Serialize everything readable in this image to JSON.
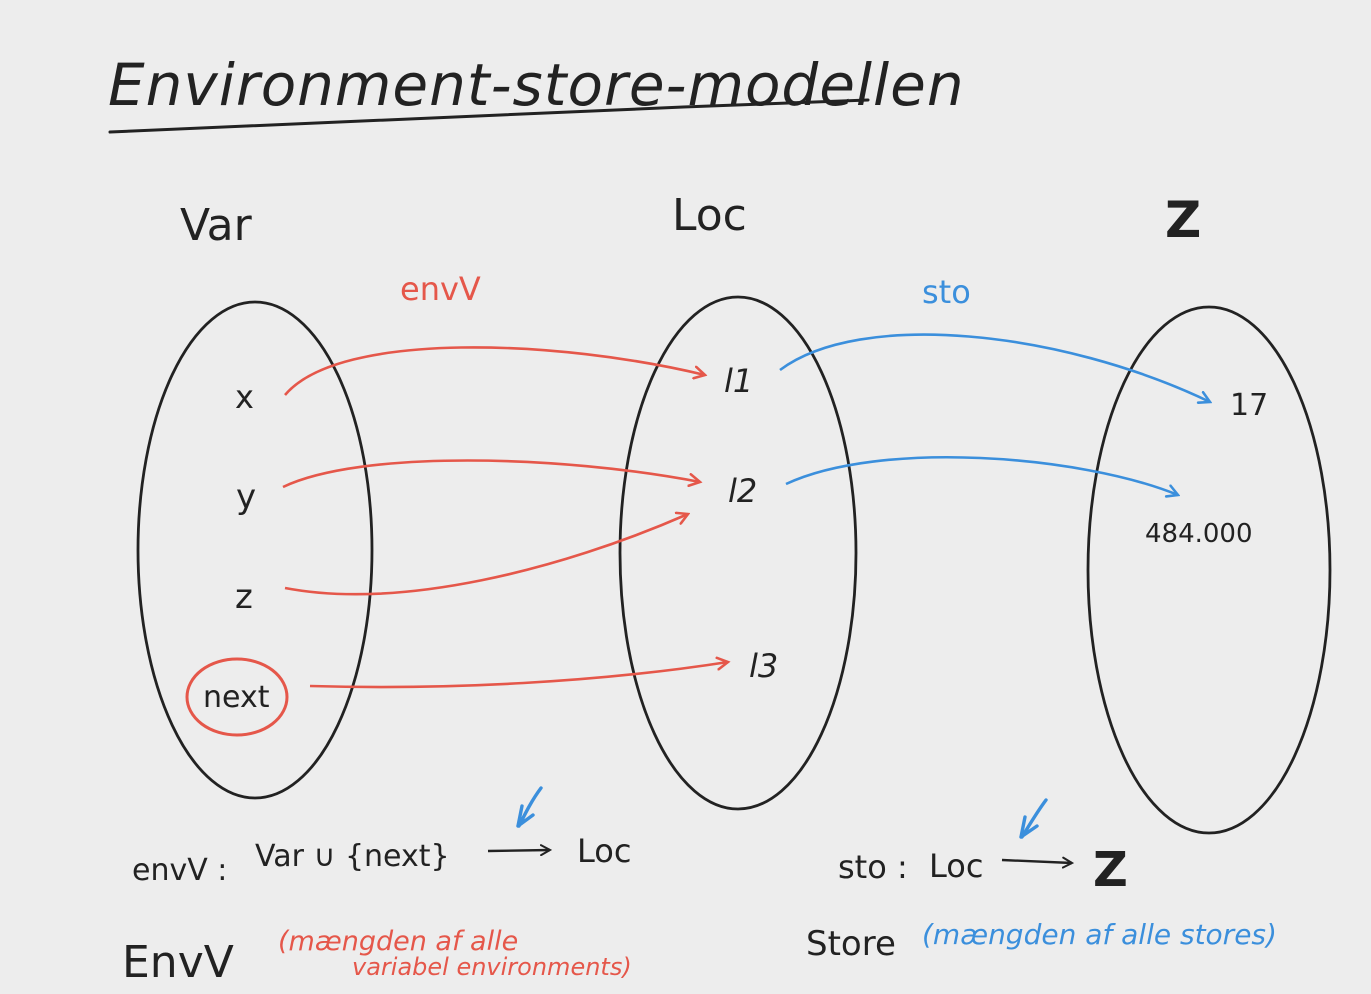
{
  "title": "Environment-store-modellen",
  "sets": {
    "var": {
      "label": "Var",
      "items": [
        "x",
        "y",
        "z",
        "next"
      ]
    },
    "loc": {
      "label": "Loc",
      "items": [
        "l1",
        "l2",
        "l3"
      ]
    },
    "z": {
      "label": "Z",
      "items": [
        "17",
        "484.000"
      ]
    }
  },
  "arrows": {
    "env_label": "envV",
    "sto_label": "sto"
  },
  "formulas": {
    "env_sig_name": "envV :",
    "env_sig_domain": "Var ∪ {next}",
    "env_sig_codomain": "Loc",
    "sto_sig_name": "sto :",
    "sto_sig_domain": "Loc",
    "sto_sig_codomain": "Z",
    "envV_set": "EnvV",
    "envV_note_1": "(mængden af alle",
    "envV_note_2": "variabel environments)",
    "store_set": "Store",
    "store_note": "(mængden af alle stores)"
  },
  "colors": {
    "background": "#ededed",
    "ink": "#222222",
    "env": "#e5574a",
    "sto": "#3b8fdc"
  }
}
